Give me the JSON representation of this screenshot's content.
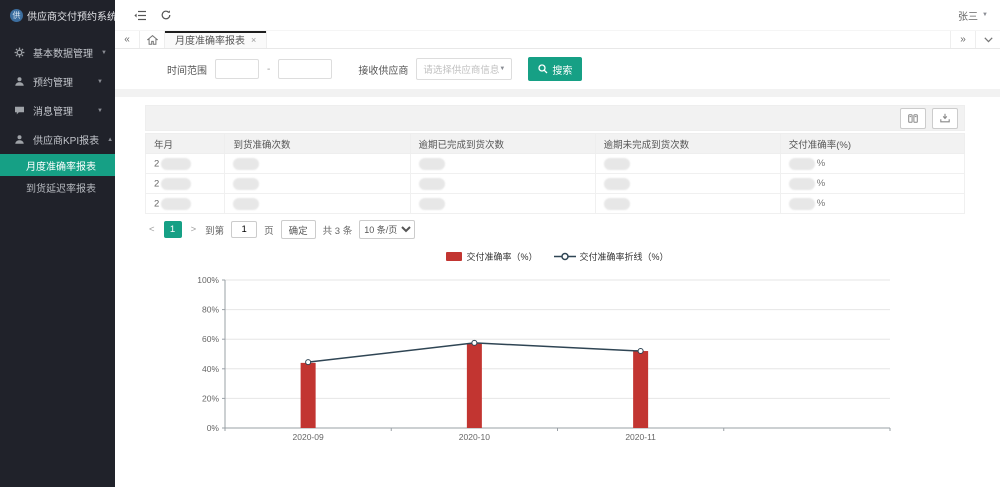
{
  "app": {
    "title": "供应商交付预约系统",
    "logo_char": "供",
    "user_name": "张三"
  },
  "tabbar": {
    "collapse_left_glyph": "«",
    "expand_right_glyph": "»",
    "active_tab": "月度准确率报表",
    "close_glyph": "×"
  },
  "sidebar": {
    "items": [
      {
        "label": "基本数据管理",
        "icon": "gear-icon",
        "caret": "▼"
      },
      {
        "label": "预约管理",
        "icon": "user-icon",
        "caret": "▼"
      },
      {
        "label": "消息管理",
        "icon": "message-icon",
        "caret": "▼"
      },
      {
        "label": "供应商KPI报表",
        "icon": "kpi-user-icon",
        "caret": "▲",
        "expanded": true,
        "children": [
          {
            "label": "月度准确率报表",
            "active": true
          },
          {
            "label": "到货延迟率报表",
            "active": false
          }
        ]
      }
    ]
  },
  "search_form": {
    "time_range_label": "时间范围",
    "range_separator": "-",
    "supplier_label": "接收供应商",
    "supplier_placeholder": "请选择供应商信息",
    "select_caret": "▼",
    "search_button_label": "搜索"
  },
  "table": {
    "columns": [
      "年月",
      "到货准确次数",
      "逾期已完成到货次数",
      "逾期未完成到货次数",
      "交付准确率(%)"
    ],
    "rows": [
      {
        "year_text": "2",
        "redacted": true,
        "percent_suffix": "%"
      },
      {
        "year_text": "2",
        "redacted": true,
        "percent_suffix": "%"
      },
      {
        "year_text": "2",
        "redacted": true,
        "percent_suffix": "%"
      }
    ]
  },
  "pagination": {
    "prev_glyph": "<",
    "current_page": "1",
    "next_glyph": ">",
    "jump_prefix": "到第",
    "jump_value": "1",
    "jump_suffix": "页",
    "confirm_label": "确定",
    "total_label": "共 3 条",
    "page_size_label": "10 条/页"
  },
  "chart_data": {
    "type": "bar",
    "title": "",
    "categories": [
      "2020-09",
      "2020-10",
      "2020-11"
    ],
    "x_slots": 4,
    "series": [
      {
        "name": "交付准确率（%）",
        "type": "bar",
        "color": "#c23531",
        "values": [
          44,
          57,
          52
        ]
      },
      {
        "name": "交付准确率折线（%）",
        "type": "line",
        "color": "#2f4554",
        "values": [
          44.5,
          57.5,
          52
        ]
      }
    ],
    "ylim": [
      0,
      100
    ],
    "yticks": [
      "0%",
      "20%",
      "40%",
      "60%",
      "80%",
      "100%"
    ],
    "grid": true,
    "legend_position": "top"
  },
  "theme": {
    "accent": "#16a085",
    "sidebar_bg": "#20222a",
    "tab_indicator": "#1e1e1e"
  }
}
